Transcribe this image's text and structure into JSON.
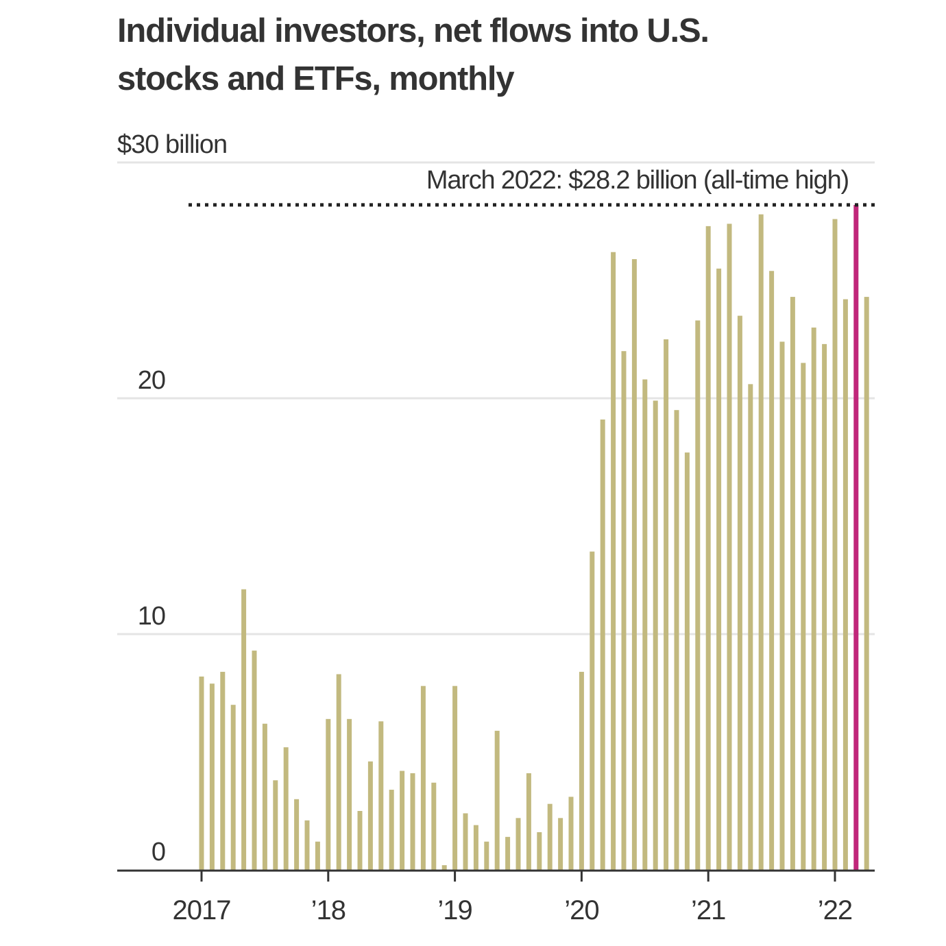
{
  "chart_data": {
    "type": "bar",
    "title": "Individual investors, net flows into U.S. stocks and ETFs, monthly",
    "xlabel": "",
    "ylabel": "",
    "y_unit_label": "$30 billion",
    "ylim": [
      0,
      30
    ],
    "yticks": [
      {
        "value": 0,
        "label": "0"
      },
      {
        "value": 10,
        "label": "10"
      },
      {
        "value": 20,
        "label": "20"
      },
      {
        "value": 30,
        "label": "$30 billion"
      }
    ],
    "xticks": [
      {
        "index": 0,
        "label": "2017"
      },
      {
        "index": 12,
        "label": "’18"
      },
      {
        "index": 24,
        "label": "’19"
      },
      {
        "index": 36,
        "label": "’20"
      },
      {
        "index": 48,
        "label": "’21"
      },
      {
        "index": 60,
        "label": "’22"
      }
    ],
    "grid": true,
    "categories": [
      "2017-01",
      "2017-02",
      "2017-03",
      "2017-04",
      "2017-05",
      "2017-06",
      "2017-07",
      "2017-08",
      "2017-09",
      "2017-10",
      "2017-11",
      "2017-12",
      "2018-01",
      "2018-02",
      "2018-03",
      "2018-04",
      "2018-05",
      "2018-06",
      "2018-07",
      "2018-08",
      "2018-09",
      "2018-10",
      "2018-11",
      "2018-12",
      "2019-01",
      "2019-02",
      "2019-03",
      "2019-04",
      "2019-05",
      "2019-06",
      "2019-07",
      "2019-08",
      "2019-09",
      "2019-10",
      "2019-11",
      "2019-12",
      "2020-01",
      "2020-02",
      "2020-03",
      "2020-04",
      "2020-05",
      "2020-06",
      "2020-07",
      "2020-08",
      "2020-09",
      "2020-10",
      "2020-11",
      "2020-12",
      "2021-01",
      "2021-02",
      "2021-03",
      "2021-04",
      "2021-05",
      "2021-06",
      "2021-07",
      "2021-08",
      "2021-09",
      "2021-10",
      "2021-11",
      "2021-12",
      "2022-01",
      "2022-02",
      "2022-03",
      "2022-04"
    ],
    "values": [
      8.2,
      7.9,
      8.4,
      7.0,
      11.9,
      9.3,
      6.2,
      3.8,
      5.2,
      3.0,
      2.1,
      1.2,
      6.4,
      8.3,
      6.4,
      2.5,
      4.6,
      6.3,
      3.4,
      4.2,
      4.1,
      7.8,
      3.7,
      0.2,
      7.8,
      2.4,
      1.9,
      1.2,
      5.9,
      1.4,
      2.2,
      4.1,
      1.6,
      2.8,
      2.2,
      3.1,
      8.4,
      13.5,
      19.1,
      26.2,
      22.0,
      25.9,
      20.8,
      19.9,
      22.5,
      19.5,
      17.7,
      23.3,
      27.3,
      25.5,
      27.4,
      23.5,
      20.6,
      27.8,
      25.4,
      22.4,
      24.3,
      21.5,
      23.0,
      22.3,
      27.6,
      24.2,
      28.2,
      24.3
    ],
    "highlight": {
      "index": 62,
      "value": 28.2,
      "annotation": "March 2022: $28.2 billion (all-time high)",
      "reference_line": "dotted"
    },
    "colors": {
      "bar": "#c2b97f",
      "highlight": "#c0267a",
      "grid": "#e4e4e4",
      "axis": "#333333",
      "text": "#333333"
    }
  }
}
